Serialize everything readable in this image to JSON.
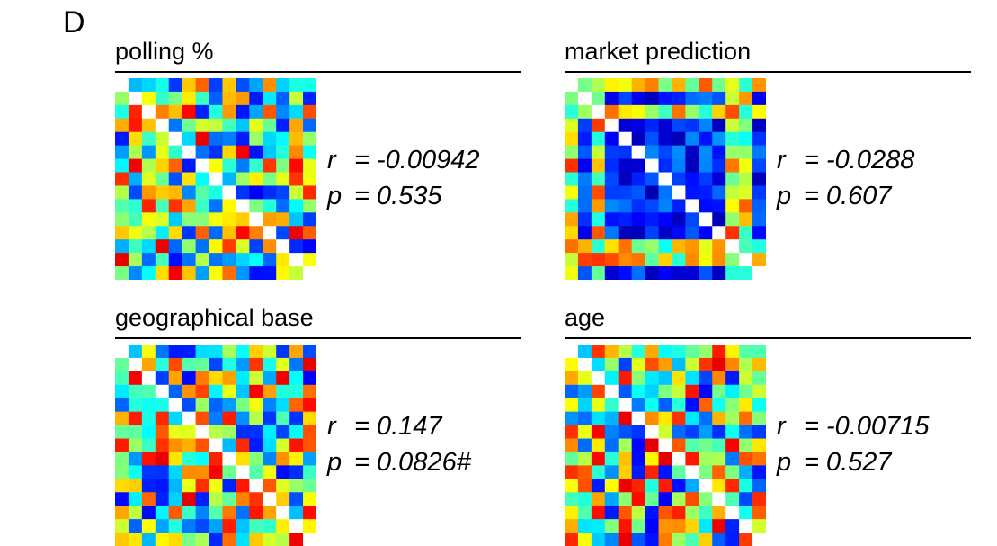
{
  "panel_letter": "D",
  "chart_data": [
    {
      "type": "heatmap",
      "title": "polling %",
      "stats": {
        "r_label": "r",
        "r_value": "= -0.00942",
        "p_label": "p",
        "p_value": "= 0.535"
      },
      "colormap": "jet",
      "diagonal": "white",
      "grid_on": false,
      "n": 15,
      "seed": 11
    },
    {
      "type": "heatmap",
      "title": "market prediction",
      "stats": {
        "r_label": "r",
        "r_value": "= -0.0288",
        "p_label": "p",
        "p_value": "= 0.607"
      },
      "colormap": "jet",
      "diagonal": "white",
      "grid_on": false,
      "n": 15,
      "seed": 23,
      "pattern": "blue block with outlier rows"
    },
    {
      "type": "heatmap",
      "title": "geographical base",
      "stats": {
        "r_label": "r",
        "r_value": "= 0.147",
        "p_label": "p",
        "p_value": "= 0.0826#"
      },
      "colormap": "jet",
      "diagonal": "white",
      "grid_on": false,
      "n": 15,
      "seed": 37
    },
    {
      "type": "heatmap",
      "title": "age",
      "stats": {
        "r_label": "r",
        "r_value": "= -0.00715",
        "p_label": "p",
        "p_value": "= 0.527"
      },
      "colormap": "jet",
      "diagonal": "white",
      "grid_on": false,
      "n": 15,
      "seed": 51
    }
  ]
}
